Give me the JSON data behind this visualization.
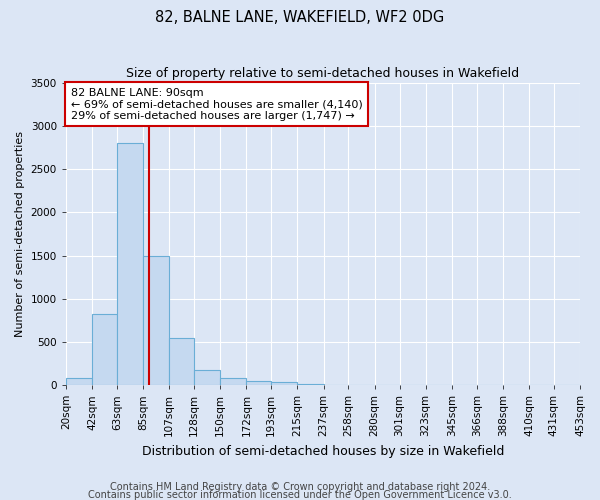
{
  "title1": "82, BALNE LANE, WAKEFIELD, WF2 0DG",
  "title2": "Size of property relative to semi-detached houses in Wakefield",
  "xlabel": "Distribution of semi-detached houses by size in Wakefield",
  "ylabel": "Number of semi-detached properties",
  "footer1": "Contains HM Land Registry data © Crown copyright and database right 2024.",
  "footer2": "Contains public sector information licensed under the Open Government Licence v3.0.",
  "annotation_title": "82 BALNE LANE: 90sqm",
  "annotation_line1": "← 69% of semi-detached houses are smaller (4,140)",
  "annotation_line2": "29% of semi-detached houses are larger (1,747) →",
  "property_size": 90,
  "bin_edges": [
    20,
    42,
    63,
    85,
    107,
    128,
    150,
    172,
    193,
    215,
    237,
    258,
    280,
    301,
    323,
    345,
    366,
    388,
    410,
    431,
    453
  ],
  "bin_labels": [
    "20sqm",
    "42sqm",
    "63sqm",
    "85sqm",
    "107sqm",
    "128sqm",
    "150sqm",
    "172sqm",
    "193sqm",
    "215sqm",
    "237sqm",
    "258sqm",
    "280sqm",
    "301sqm",
    "323sqm",
    "345sqm",
    "366sqm",
    "388sqm",
    "410sqm",
    "431sqm",
    "453sqm"
  ],
  "counts": [
    80,
    820,
    2800,
    1500,
    540,
    170,
    80,
    50,
    30,
    10,
    0,
    0,
    0,
    0,
    0,
    0,
    0,
    0,
    0,
    0
  ],
  "bar_color": "#c5d9f0",
  "bar_edge_color": "#6aaed6",
  "vline_color": "#cc0000",
  "vline_x": 90,
  "annotation_box_color": "#ffffff",
  "annotation_box_edge": "#cc0000",
  "background_color": "#dce6f5",
  "plot_bg_color": "#dce6f5",
  "ylim": [
    0,
    3500
  ],
  "xlim_left": 20,
  "xlim_right": 453,
  "title1_fontsize": 10.5,
  "title2_fontsize": 9,
  "xlabel_fontsize": 9,
  "ylabel_fontsize": 8,
  "footer_fontsize": 7,
  "tick_fontsize": 7.5,
  "annotation_fontsize": 8
}
